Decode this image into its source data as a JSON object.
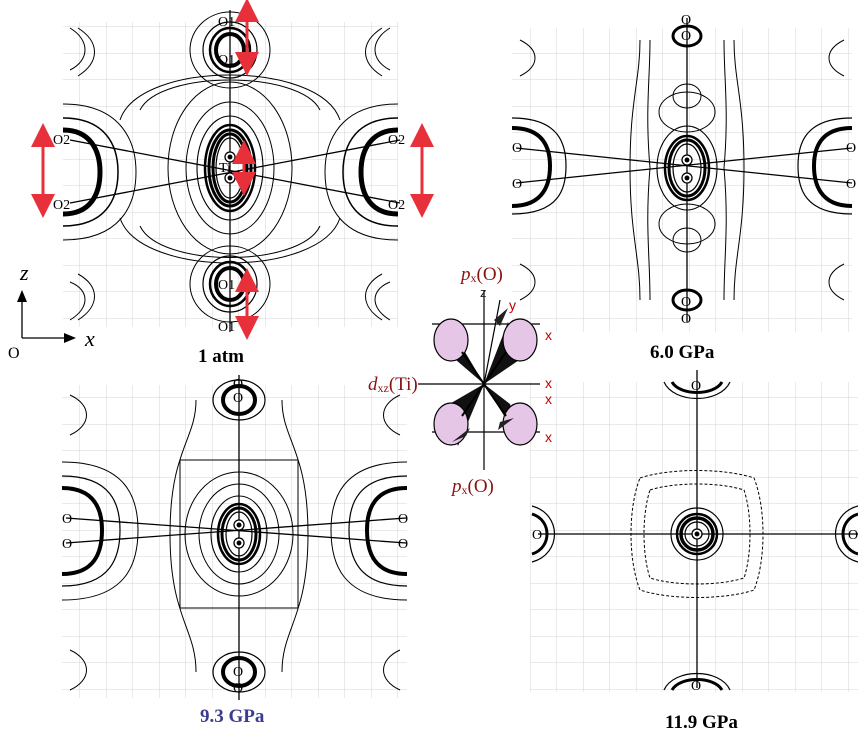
{
  "panels": [
    {
      "id": "p1",
      "caption": "1 atm",
      "labels": {
        "top_outer": "O1",
        "top_inner": "O1",
        "bottom_inner": "O1",
        "bottom_outer": "O1",
        "left_upper": "O2",
        "left_lower": "O2",
        "right_upper": "O2",
        "right_lower": "O2",
        "center": "Ti"
      }
    },
    {
      "id": "p2",
      "caption": "6.0 GPa",
      "labels": {
        "top_outer": "O",
        "top_inner": "O",
        "bottom_inner": "O",
        "bottom_outer": "O",
        "left_upper": "O",
        "left_lower": "O",
        "right_upper": "O",
        "right_lower": "O"
      }
    },
    {
      "id": "p3",
      "caption": "9.3 GPa",
      "labels": {
        "top_outer": "O",
        "top_inner": "O",
        "bottom_inner": "O",
        "bottom_outer": "O",
        "left_upper": "O",
        "left_lower": "O",
        "right_upper": "O",
        "right_lower": "O"
      }
    },
    {
      "id": "p4",
      "caption": "11.9 GPa",
      "labels": {
        "top": "O",
        "bottom": "O",
        "left": "O",
        "right": "O"
      }
    }
  ],
  "axes": {
    "z": "z",
    "x": "x",
    "origin": "O"
  },
  "orbital": {
    "p_top_main": "p",
    "p_top_sub": "x",
    "p_top_tail": "(O)",
    "d_main": "d",
    "d_sub": "xz",
    "d_tail": "(Ti)",
    "p_bot_main": "p",
    "p_bot_sub": "x",
    "p_bot_tail": "(O)",
    "z": "z",
    "y": "y",
    "x1": "x",
    "x2": "x",
    "x3": "x",
    "x4": "x"
  },
  "colors": {
    "arrow": "#e8303a",
    "orbital_text": "#8b1010",
    "lobe": "#e6c6e6",
    "grid": "#d4d4d4",
    "caption_9_3": "#3b3b8f"
  }
}
